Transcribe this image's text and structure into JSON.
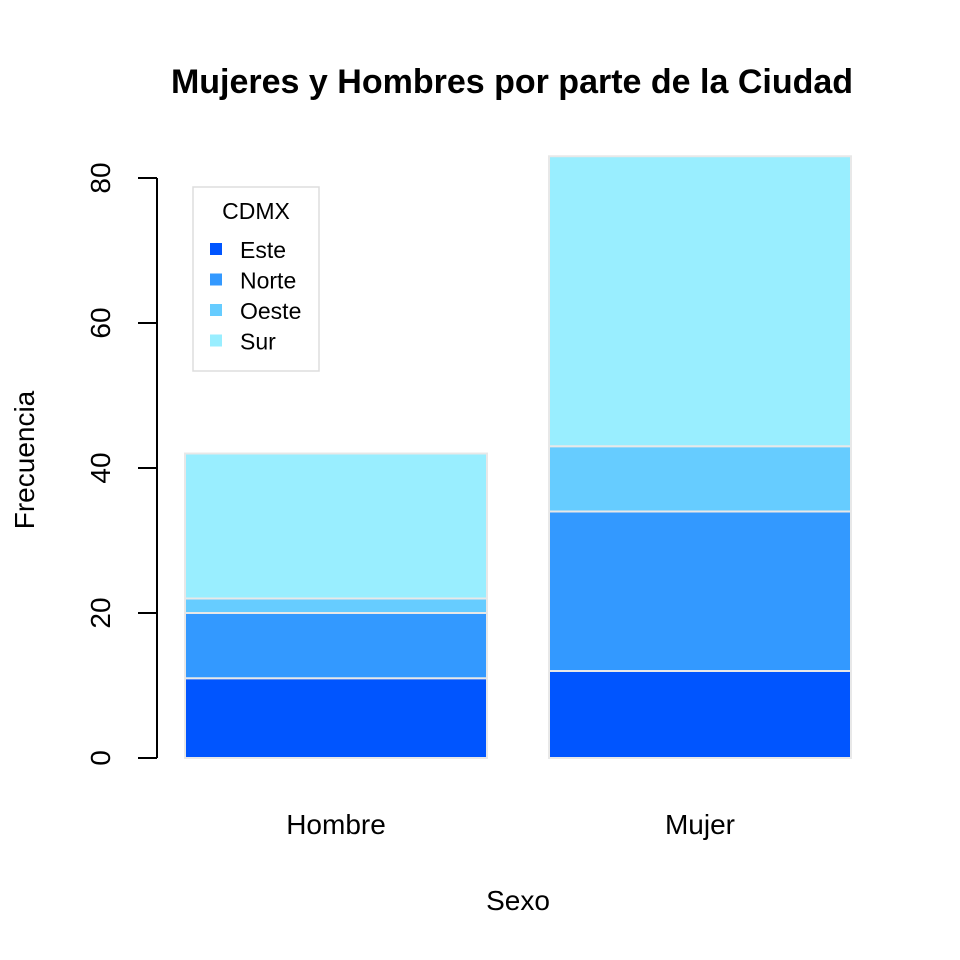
{
  "chart_data": {
    "type": "bar",
    "stacked": true,
    "title": "Mujeres y Hombres por parte de la Ciudad",
    "xlabel": "Sexo",
    "ylabel": "Frecuencia",
    "categories": [
      "Hombre",
      "Mujer"
    ],
    "series": [
      {
        "name": "Este",
        "values": [
          11,
          12
        ],
        "color": "#0055FF"
      },
      {
        "name": "Norte",
        "values": [
          9,
          22
        ],
        "color": "#3399FF"
      },
      {
        "name": "Oeste",
        "values": [
          2,
          9
        ],
        "color": "#66CCFF"
      },
      {
        "name": "Sur",
        "values": [
          20,
          40
        ],
        "color": "#99EEFF"
      }
    ],
    "ylim": [
      0,
      80
    ],
    "yticks": [
      0,
      20,
      40,
      60,
      80
    ],
    "grid": false,
    "legend": {
      "title": "CDMX",
      "position": "top-left"
    },
    "bar_border_color": "#E8E8E8"
  }
}
